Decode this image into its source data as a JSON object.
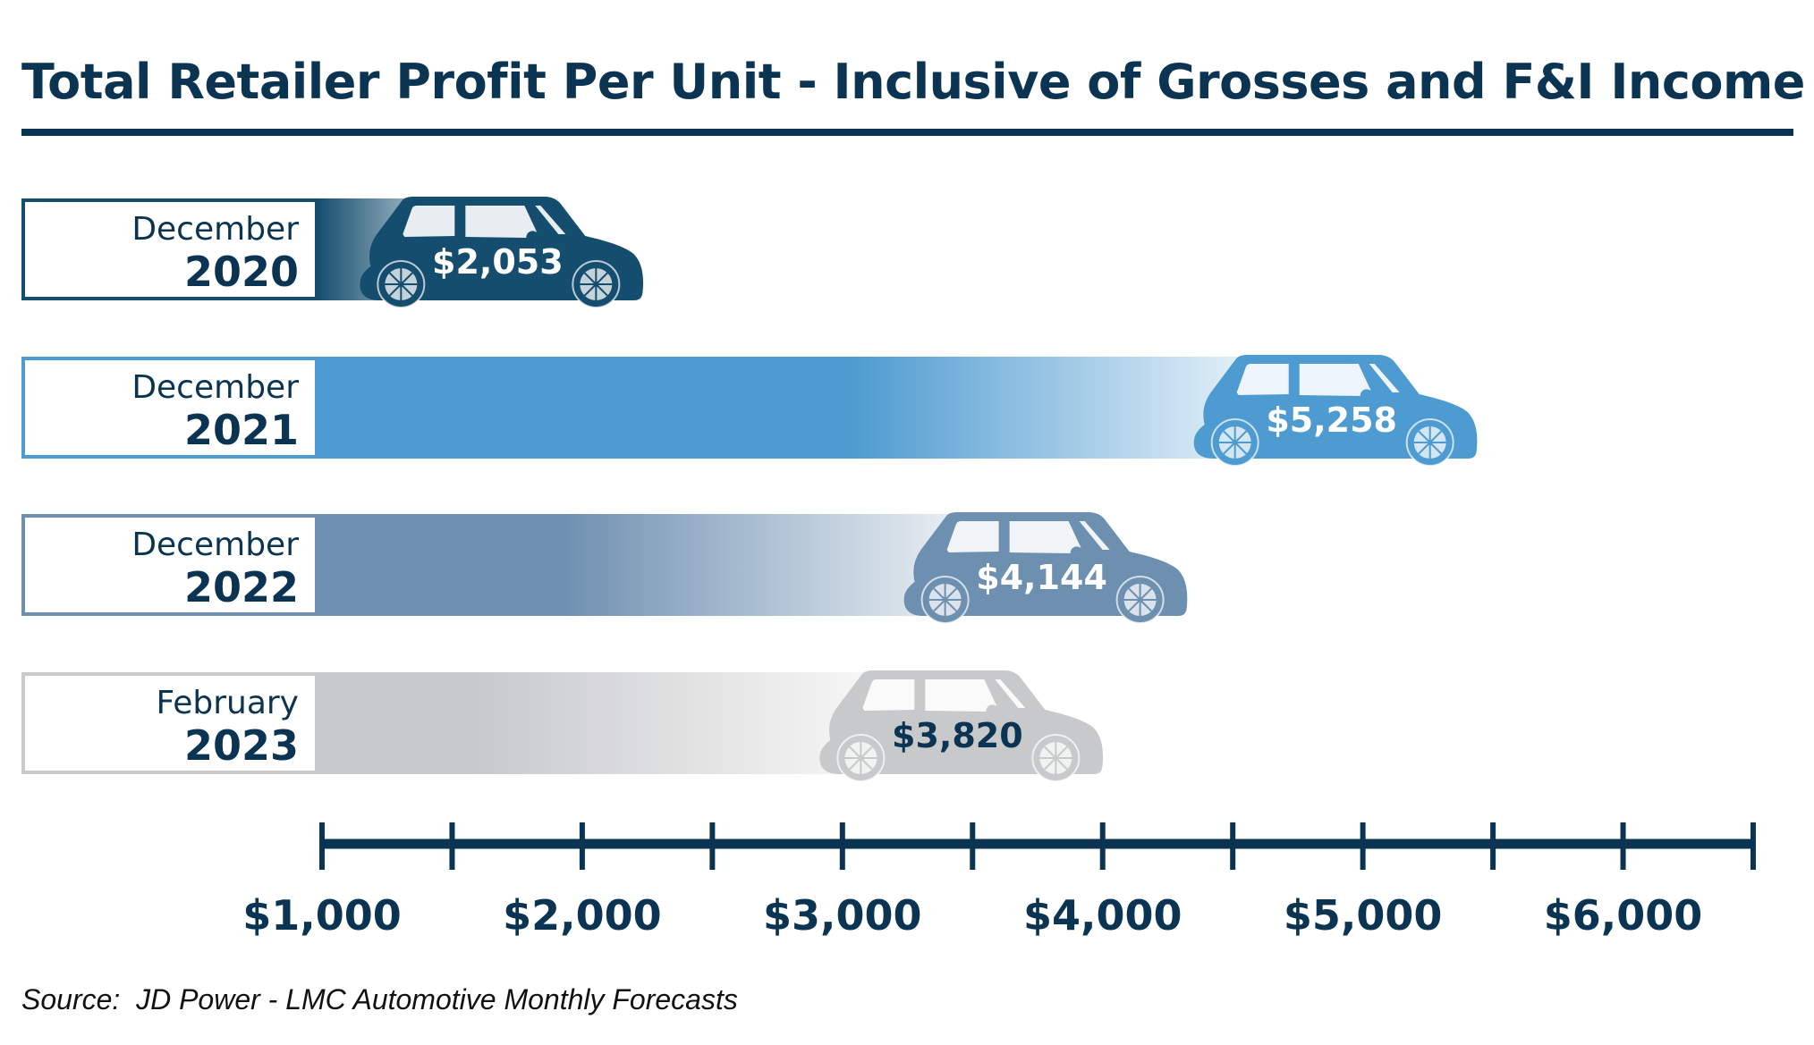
{
  "chart_data": {
    "type": "bar",
    "orientation": "horizontal",
    "title": "Total Retailer Profit Per Unit - Inclusive of Grosses and F&I Income",
    "xlabel": "",
    "ylabel": "",
    "xlim": [
      1000,
      6500
    ],
    "x_ticks": [
      1000,
      1500,
      2000,
      2500,
      3000,
      3500,
      4000,
      4500,
      5000,
      5500,
      6000,
      6500
    ],
    "x_tick_labels": [
      {
        "value": 1000,
        "label": "$1,000"
      },
      {
        "value": 2000,
        "label": "$2,000"
      },
      {
        "value": 3000,
        "label": "$3,000"
      },
      {
        "value": 4000,
        "label": "$4,000"
      },
      {
        "value": 5000,
        "label": "$5,000"
      },
      {
        "value": 6000,
        "label": "$6,000"
      }
    ],
    "grid": false,
    "categories": [
      {
        "month": "December",
        "year": "2020"
      },
      {
        "month": "December",
        "year": "2021"
      },
      {
        "month": "December",
        "year": "2022"
      },
      {
        "month": "February",
        "year": "2023"
      }
    ],
    "values": [
      2053,
      5258,
      4144,
      3820
    ],
    "value_labels": [
      "$2,053",
      "$5,258",
      "$4,144",
      "$3,820"
    ],
    "bar_colors": [
      "#144d6e",
      "#4d9bd0",
      "#6d8fb0",
      "#c8c9cb"
    ],
    "value_label_colors": [
      "#ffffff",
      "#ffffff",
      "#ffffff",
      "#0b3452"
    ],
    "label_text_color": "#0b3452",
    "axis_color": "#0b3452",
    "marker_icon": "car-icon"
  },
  "source": "Source:  JD Power - LMC Automotive Monthly Forecasts"
}
